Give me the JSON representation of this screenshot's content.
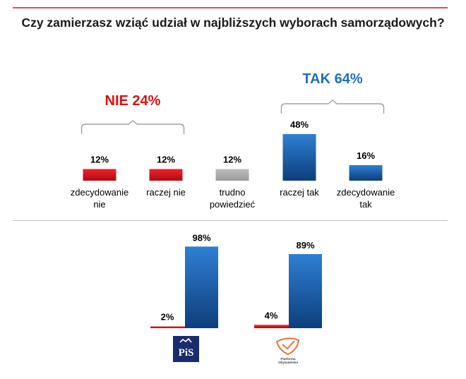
{
  "title": "Czy zamierzasz wziąć udział w najbliższych wyborach samorządowych?",
  "colors": {
    "red": "#d9111a",
    "blue": "#1e5fa8",
    "gray": "#a6a6a6",
    "rule_red": "#d9534f"
  },
  "chart_data": [
    {
      "type": "bar",
      "title": "Czy zamierzasz wziąć udział w najbliższych wyborach samorządowych?",
      "categories": [
        "zdecydowanie nie",
        "raczej nie",
        "trudno powiedzieć",
        "raczej tak",
        "zdecydowanie tak"
      ],
      "category_lines": [
        [
          "zdecydowanie",
          "nie"
        ],
        [
          "raczej nie"
        ],
        [
          "trudno",
          "powiedzieć"
        ],
        [
          "raczej tak"
        ],
        [
          "zdecydowanie",
          "tak"
        ]
      ],
      "values": [
        12,
        12,
        12,
        48,
        16
      ],
      "value_labels": [
        "12%",
        "12%",
        "12%",
        "48%",
        "16%"
      ],
      "colors": [
        "#d9111a",
        "#d9111a",
        "#a6a6a6",
        "#1e5fa8",
        "#1e5fa8"
      ],
      "groups": [
        {
          "label": "NIE 24%",
          "color": "#e01010",
          "members": [
            0,
            1
          ]
        },
        {
          "label": "TAK 64%",
          "color": "#1f6fbf",
          "members": [
            3,
            4
          ]
        }
      ],
      "unit": "%"
    },
    {
      "type": "bar",
      "categories": [
        "PiS",
        "Platforma Obywatelska"
      ],
      "series": [
        {
          "values": [
            2,
            4
          ],
          "value_labels": [
            "2%",
            "4%"
          ],
          "color": "#d9111a"
        },
        {
          "values": [
            98,
            89
          ],
          "value_labels": [
            "98%",
            "89%"
          ],
          "color": "#1e5fa8"
        }
      ],
      "unit": "%"
    }
  ],
  "logos": {
    "pis": {
      "text": "PiS"
    },
    "po": {
      "text": "Platforma Obywatelska"
    }
  }
}
